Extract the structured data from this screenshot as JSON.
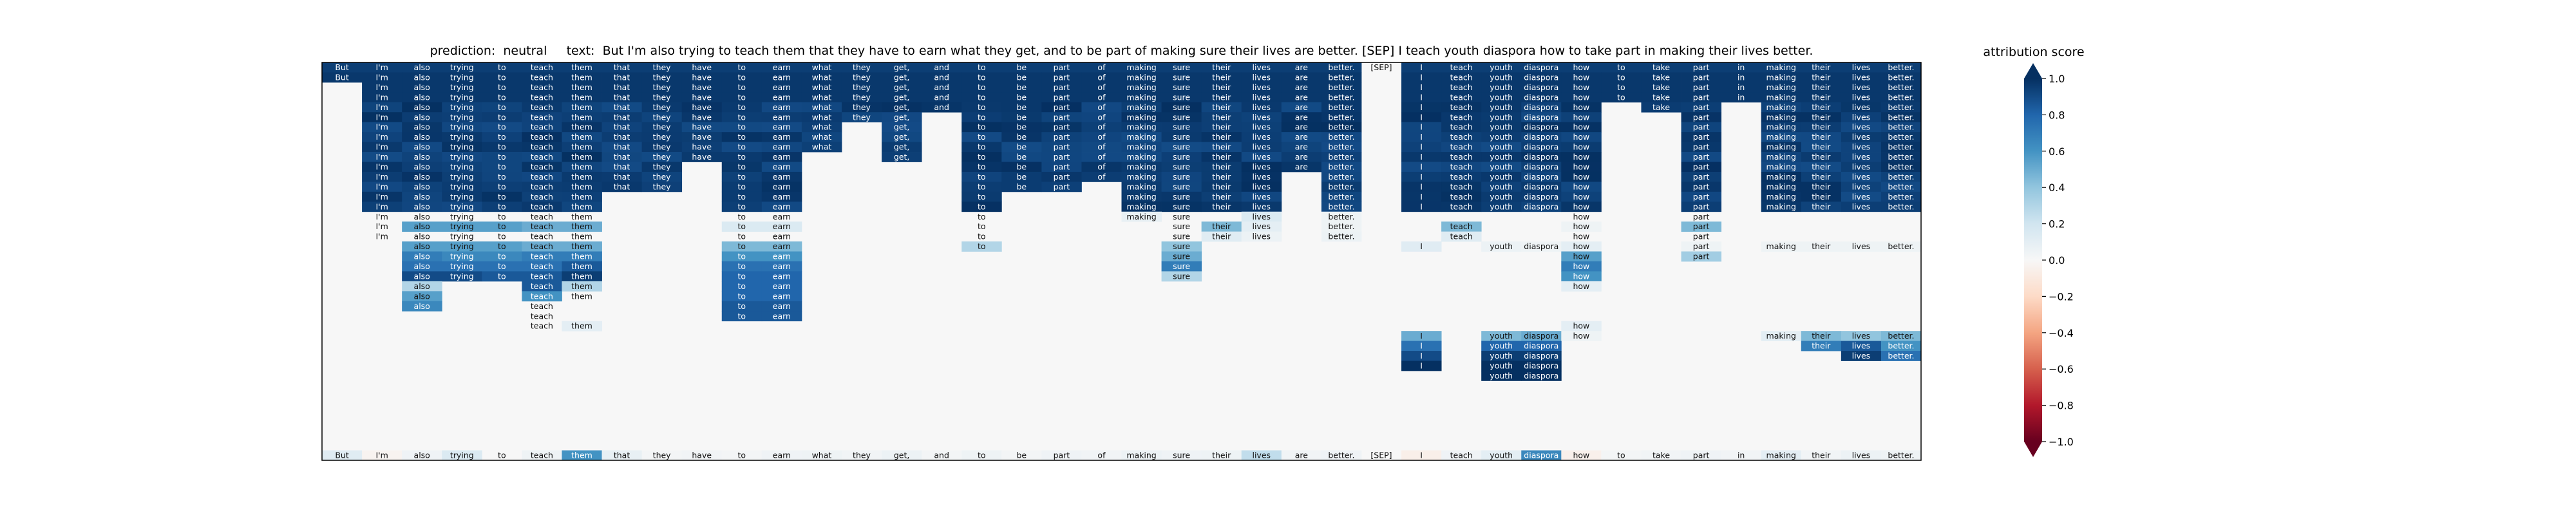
{
  "chart_data": {
    "type": "heatmap",
    "title": {
      "prediction_label": "prediction:",
      "prediction": "neutral",
      "text_label": "text:",
      "text": "But I'm also trying to teach them that they have to earn what they get, and to be part of making sure their lives are better. [SEP] I teach youth diaspora how to take part in making their lives better."
    },
    "tokens": [
      "But",
      "I'm",
      "also",
      "trying",
      "to",
      "teach",
      "them",
      "that",
      "they",
      "have",
      "to",
      "earn",
      "what",
      "they",
      "get,",
      "and",
      "to",
      "be",
      "part",
      "of",
      "making",
      "sure",
      "their",
      "lives",
      "are",
      "better.",
      "[SEP]",
      "I",
      "teach",
      "youth",
      "diaspora",
      "how",
      "to",
      "take",
      "part",
      "in",
      "making",
      "their",
      "lives",
      "better."
    ],
    "num_rows": 40,
    "baseline_row_values": [
      0.12,
      -0.03,
      0.04,
      0.15,
      0.0,
      0.05,
      0.6,
      0.08,
      0.02,
      0.03,
      0.02,
      0.04,
      0.05,
      0.03,
      0.06,
      0.02,
      0.05,
      0.02,
      0.04,
      0.03,
      0.06,
      0.04,
      0.05,
      0.25,
      0.03,
      0.04,
      0.0,
      -0.06,
      0.04,
      0.1,
      0.65,
      -0.05,
      0.02,
      0.03,
      0.04,
      0.03,
      0.1,
      0.03,
      0.06,
      0.05
    ],
    "colorbar": {
      "label": "attribution score",
      "ticks": [
        "1.0",
        "0.8",
        "0.6",
        "0.4",
        "0.2",
        "0.0",
        "−0.2",
        "−0.4",
        "−0.6",
        "−0.8",
        "−1.0"
      ],
      "vmin": -1.0,
      "vmax": 1.0,
      "colormap": "RdBu"
    }
  }
}
